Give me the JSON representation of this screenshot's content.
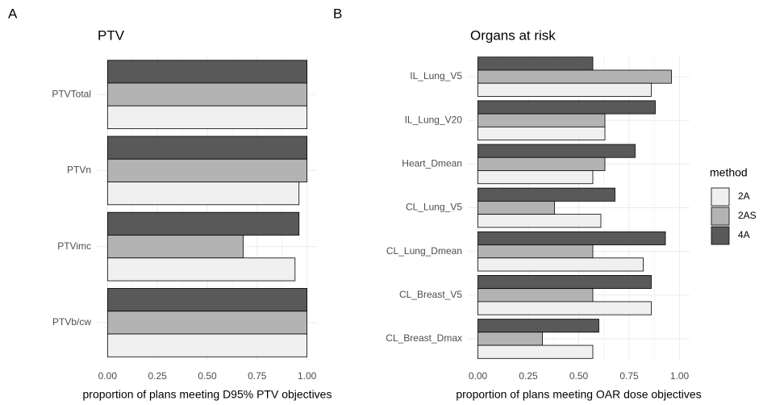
{
  "chart_data": [
    {
      "type": "bar",
      "orientation": "horizontal",
      "panel": "A",
      "title": "PTV",
      "x_label": "proportion of plans meeting D95% PTV objectives",
      "categories": [
        "PTVTotal",
        "PTVn",
        "PTVimc",
        "PTVb/cw"
      ],
      "series": [
        {
          "name": "2A",
          "color": "#f0f0f0",
          "values": [
            1,
            0.96,
            0.94,
            1
          ]
        },
        {
          "name": "2AS",
          "color": "#b3b3b3",
          "values": [
            1,
            1,
            0.68,
            1
          ]
        },
        {
          "name": "4A",
          "color": "#595959",
          "values": [
            1,
            1,
            0.96,
            1
          ]
        }
      ],
      "xlim": [
        -0.05,
        1.05
      ],
      "xticks": [
        {
          "value": 0,
          "label": "0.00"
        },
        {
          "value": 0.25,
          "label": "0.25"
        },
        {
          "value": 0.5,
          "label": "0.50"
        },
        {
          "value": 0.75,
          "label": "0.75"
        },
        {
          "value": 1,
          "label": "1.00"
        }
      ],
      "grid": true,
      "legend": false
    },
    {
      "type": "bar",
      "orientation": "horizontal",
      "panel": "B",
      "title": "Organs at risk",
      "x_label": "proportion of plans meeting OAR dose objectives",
      "categories": [
        "IL_Lung_V5",
        "IL_Lung_V20",
        "Heart_Dmean",
        "CL_Lung_V5",
        "CL_Lung_Dmean",
        "CL_Breast_V5",
        "CL_Breast_Dmax"
      ],
      "series": [
        {
          "name": "2A",
          "color": "#f0f0f0",
          "values": [
            0.86,
            0.63,
            0.57,
            0.61,
            0.82,
            0.86,
            0.57
          ]
        },
        {
          "name": "2AS",
          "color": "#b3b3b3",
          "values": [
            0.96,
            0.63,
            0.63,
            0.38,
            0.57,
            0.57,
            0.32
          ]
        },
        {
          "name": "4A",
          "color": "#595959",
          "values": [
            0.57,
            0.88,
            0.78,
            0.68,
            0.93,
            0.86,
            0.6
          ]
        }
      ],
      "xlim": [
        -0.05,
        1.05
      ],
      "xticks": [
        {
          "value": 0,
          "label": "0.00"
        },
        {
          "value": 0.25,
          "label": "0.25"
        },
        {
          "value": 0.5,
          "label": "0.50"
        },
        {
          "value": 0.75,
          "label": "0.75"
        },
        {
          "value": 1,
          "label": "1.00"
        }
      ],
      "grid": true,
      "legend": true,
      "legend_title": "method",
      "legend_position": "right"
    }
  ]
}
